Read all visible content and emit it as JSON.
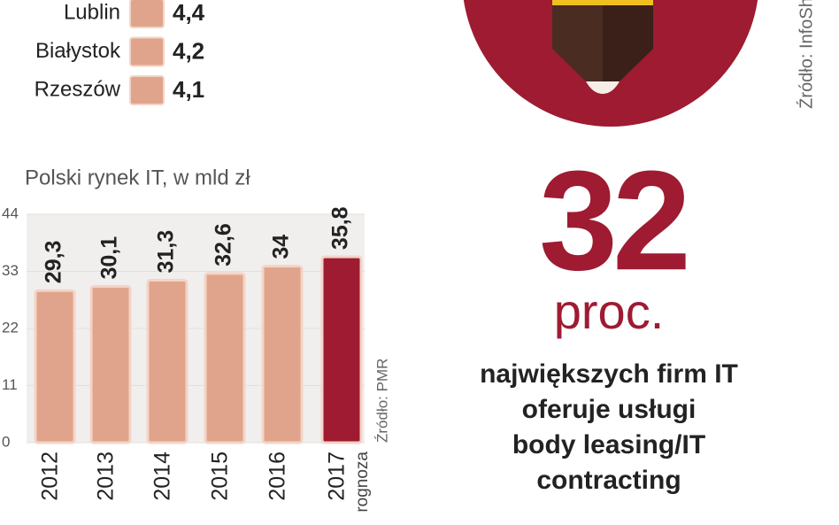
{
  "ranking": {
    "rows": [
      {
        "city": "Lublin",
        "value": "4,4"
      },
      {
        "city": "Białystok",
        "value": "4,2"
      },
      {
        "city": "Rzeszów",
        "value": "4,1"
      }
    ],
    "color": "#e0a48c"
  },
  "chart_data": {
    "type": "bar",
    "title": "Polski rynek IT, w mld zł",
    "categories": [
      "2012",
      "2013",
      "2014",
      "2015",
      "2016",
      "2017"
    ],
    "values": [
      29.3,
      30.1,
      31.3,
      32.6,
      34,
      35.8
    ],
    "value_labels": [
      "29,3",
      "30,1",
      "31,3",
      "32,6",
      "34",
      "35,8"
    ],
    "colors": [
      "#e0a48c",
      "#e0a48c",
      "#e0a48c",
      "#e0a48c",
      "#e0a48c",
      "#9e1b32"
    ],
    "ylim": [
      0,
      44
    ],
    "yticks": [
      0,
      11,
      22,
      33,
      44
    ],
    "annotation": "rognoza",
    "source": "Źródło: PMR"
  },
  "highlight": {
    "number": "32",
    "unit": "proc.",
    "lines": [
      "największych firm IT",
      "oferuje usługi",
      "body leasing/IT",
      "contracting"
    ]
  },
  "source_right": "Źródło: InfoSh"
}
